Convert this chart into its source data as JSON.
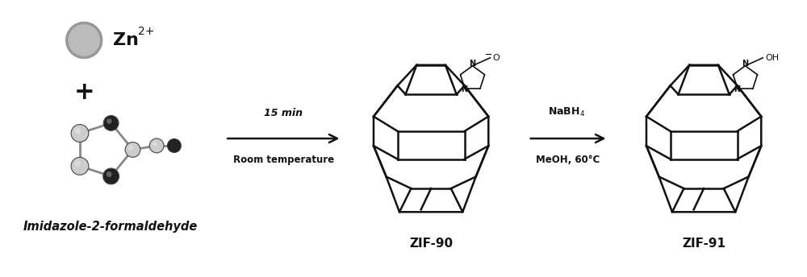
{
  "background_color": "#ffffff",
  "fig_width": 10.0,
  "fig_height": 3.44,
  "dpi": 100,
  "zn_label": "Zn",
  "zn_superscript": "2+",
  "plus_sign": "+",
  "label_imidazole": "Imidazole-2-formaldehyde",
  "arrow1_label_top": "15 min",
  "arrow1_label_bottom": "Room temperature",
  "arrow2_label_bottom": "MeOH, 60°C",
  "zif90_label": "ZIF-90",
  "zif91_label": "ZIF-91",
  "text_color": "#111111",
  "arrow_color": "#111111",
  "structure_color": "#111111",
  "zn_ball_color": "#bbbbbb",
  "zn_ball_edge": "#888888"
}
